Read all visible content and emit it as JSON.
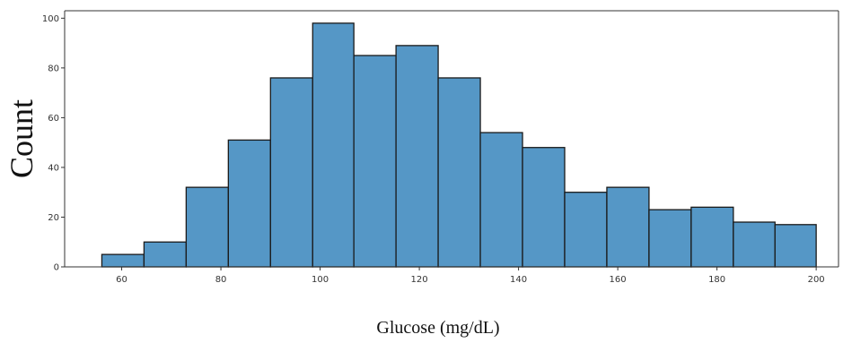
{
  "chart_data": {
    "type": "bar",
    "xlabel": "Glucose (mg/dL)",
    "ylabel": "Count",
    "xlim": [
      48.5,
      204.5
    ],
    "ylim": [
      0,
      103
    ],
    "xticks": [
      60,
      80,
      100,
      120,
      140,
      160,
      180,
      200
    ],
    "yticks": [
      0,
      20,
      40,
      60,
      80,
      100
    ],
    "bins": [
      {
        "start": 56.0,
        "end": 64.5,
        "count": 5
      },
      {
        "start": 64.5,
        "end": 73.0,
        "count": 10
      },
      {
        "start": 73.0,
        "end": 81.5,
        "count": 32
      },
      {
        "start": 81.5,
        "end": 90.0,
        "count": 51
      },
      {
        "start": 90.0,
        "end": 98.5,
        "count": 76
      },
      {
        "start": 98.5,
        "end": 106.8,
        "count": 98
      },
      {
        "start": 106.8,
        "end": 115.3,
        "count": 85
      },
      {
        "start": 115.3,
        "end": 123.8,
        "count": 89
      },
      {
        "start": 123.8,
        "end": 132.3,
        "count": 76
      },
      {
        "start": 132.3,
        "end": 140.8,
        "count": 54
      },
      {
        "start": 140.8,
        "end": 149.3,
        "count": 48
      },
      {
        "start": 149.3,
        "end": 157.8,
        "count": 30
      },
      {
        "start": 157.8,
        "end": 166.3,
        "count": 32
      },
      {
        "start": 166.3,
        "end": 174.8,
        "count": 23
      },
      {
        "start": 174.8,
        "end": 183.3,
        "count": 24
      },
      {
        "start": 183.3,
        "end": 191.7,
        "count": 18
      },
      {
        "start": 191.7,
        "end": 200.0,
        "count": 17
      }
    ],
    "bar_color": "#5597C6",
    "bar_edge_color": "#1a1a1a",
    "grid": false,
    "legend": "none"
  }
}
